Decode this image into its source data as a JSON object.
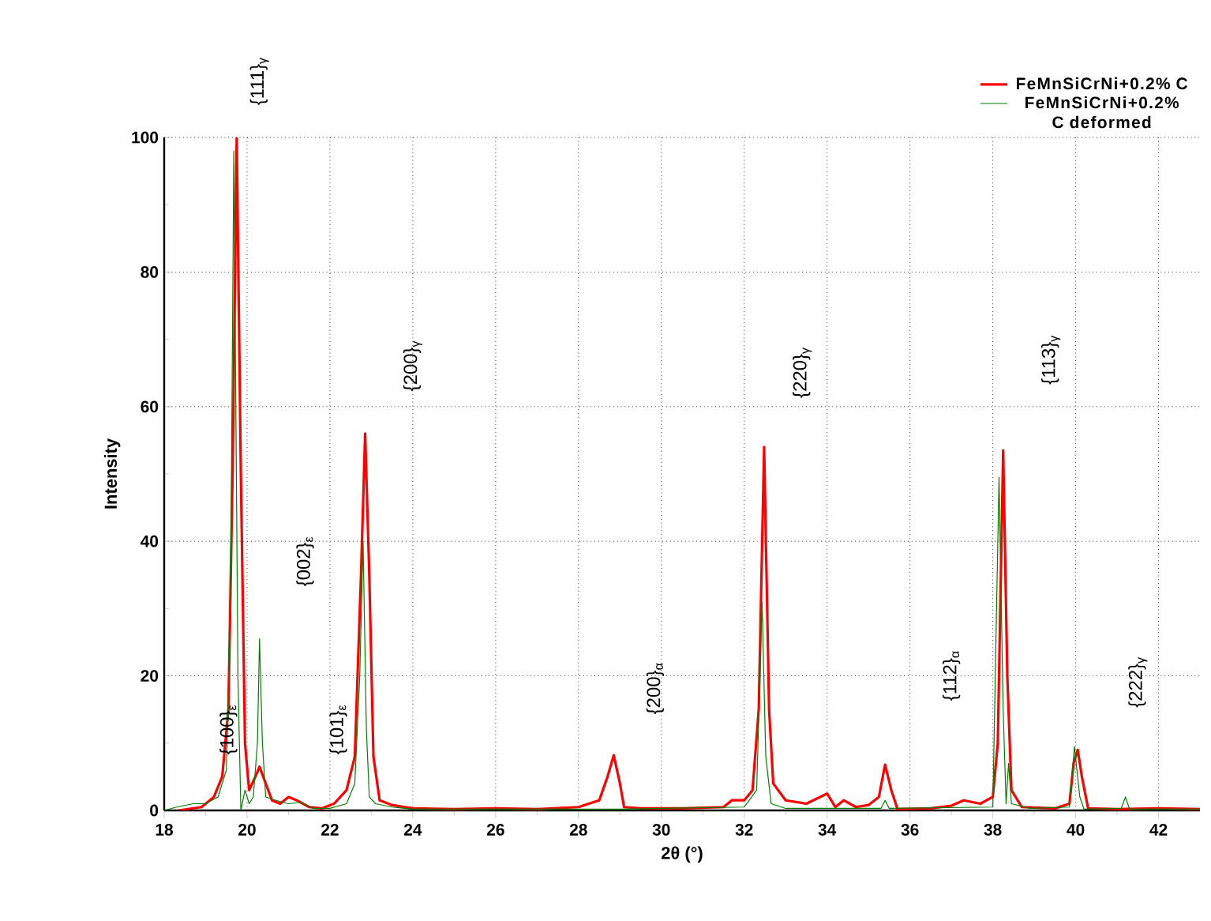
{
  "chart_data": {
    "type": "line",
    "xlabel": "2θ (°)",
    "ylabel": "Intensity",
    "xlim": [
      18,
      43
    ],
    "ylim": [
      0,
      100
    ],
    "xticks": [
      18,
      20,
      22,
      24,
      26,
      28,
      30,
      32,
      34,
      36,
      38,
      40,
      42
    ],
    "yticks": [
      0,
      20,
      40,
      60,
      80,
      100
    ],
    "grid": true,
    "legend": "top right",
    "series": [
      {
        "name": "FeMnSiCrNi+0.2% C",
        "color": "#ff0000",
        "x": [
          18.35,
          18.9,
          19.2,
          19.4,
          19.55,
          19.65,
          19.75,
          19.85,
          19.95,
          20.05,
          20.2,
          20.3,
          20.45,
          20.6,
          20.8,
          21.0,
          21.2,
          21.5,
          21.8,
          22.1,
          22.4,
          22.6,
          22.75,
          22.85,
          22.95,
          23.05,
          23.2,
          23.5,
          24,
          25,
          26,
          27,
          28,
          28.5,
          28.7,
          28.85,
          29.0,
          29.1,
          29.5,
          30.5,
          31.5,
          31.7,
          32.0,
          32.2,
          32.35,
          32.48,
          32.6,
          32.7,
          33,
          33.5,
          34.0,
          34.2,
          34.4,
          34.7,
          35.0,
          35.25,
          35.4,
          35.55,
          35.7,
          36.5,
          37,
          37.3,
          37.7,
          38.0,
          38.12,
          38.25,
          38.35,
          38.45,
          38.7,
          39.5,
          39.85,
          39.95,
          40.05,
          40.15,
          40.3,
          41,
          42,
          43
        ],
        "values": [
          0,
          0.5,
          2,
          5,
          15,
          50,
          100,
          50,
          10,
          3,
          5,
          6.5,
          4,
          1.5,
          1,
          2,
          1.5,
          0.5,
          0.3,
          1,
          3,
          8,
          35,
          56,
          35,
          8,
          1.5,
          0.8,
          0.3,
          0.2,
          0.3,
          0.2,
          0.5,
          1.5,
          5,
          8.2,
          4,
          0.5,
          0.3,
          0.3,
          0.5,
          1.5,
          1.5,
          3,
          15,
          54,
          15,
          4,
          1.5,
          1,
          2.5,
          0.5,
          1.5,
          0.5,
          0.8,
          2,
          6.8,
          3,
          0.2,
          0.3,
          0.7,
          1.5,
          1,
          2,
          10,
          53.5,
          20,
          3,
          0.5,
          0.3,
          1,
          7,
          9,
          5,
          0.3,
          0.2,
          0.3,
          0.2
        ]
      },
      {
        "name": "FeMnSiCrNi+0.2% C deformed",
        "color": "#008000",
        "x": [
          18,
          18.3,
          18.7,
          19.0,
          19.3,
          19.5,
          19.6,
          19.68,
          19.78,
          19.85,
          19.95,
          20.05,
          20.15,
          20.25,
          20.3,
          20.37,
          20.45,
          20.7,
          21.0,
          21.3,
          21.6,
          22.0,
          22.4,
          22.6,
          22.72,
          22.8,
          22.88,
          22.95,
          23.1,
          23.5,
          24,
          28,
          29,
          30,
          32,
          32.3,
          32.43,
          32.52,
          32.65,
          33,
          35.3,
          35.4,
          35.5,
          38.0,
          38.15,
          38.25,
          38.32,
          38.38,
          38.45,
          38.9,
          39.85,
          39.97,
          40.1,
          40.2,
          41.1,
          41.2,
          41.3,
          42,
          43
        ],
        "values": [
          0,
          0.5,
          1,
          1,
          2,
          6,
          30,
          98,
          20,
          0,
          3,
          1,
          2,
          10,
          25.5,
          10,
          2,
          1.5,
          1,
          1.2,
          0.3,
          0.3,
          1,
          4,
          20,
          40,
          12,
          2,
          1,
          0.5,
          0.2,
          0.2,
          0.2,
          0.3,
          0.5,
          3,
          31,
          8,
          1,
          0.3,
          0.3,
          1.5,
          0.3,
          0.5,
          49.5,
          15,
          1,
          7,
          1,
          0.3,
          0.5,
          9.5,
          2,
          0.2,
          0.3,
          2,
          0.2,
          0.2,
          0.2
        ]
      }
    ],
    "annotations": [
      "{111}$_{γ}$",
      "{100}$_{ε}$",
      "{002}$_{ε}$",
      "{101}$_{ε}$",
      "{200}$_{γ}$",
      "{200}$_{α}$",
      "{220}$_{γ}$",
      "{112}$_{α}$",
      "{113}$_{γ}$",
      "{222}$_{γ}$"
    ]
  }
}
